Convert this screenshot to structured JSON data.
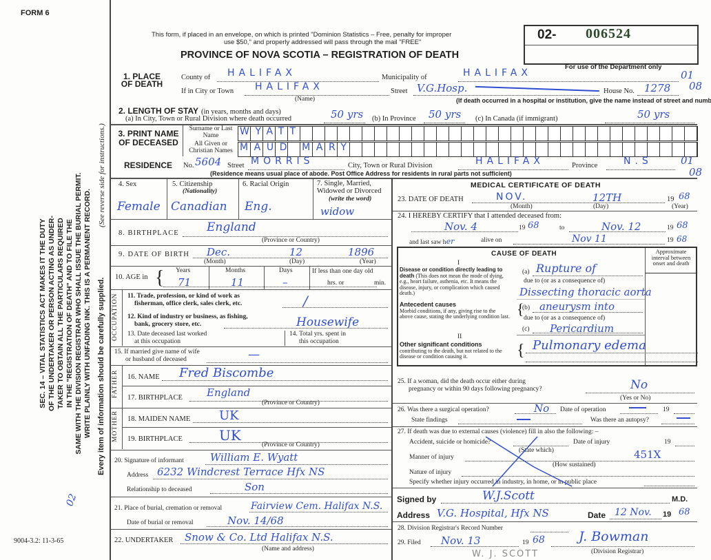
{
  "form_number": "FORM 6",
  "print_code": "9004-3.2: 11-3-65",
  "registration_number": {
    "prefix": "02-",
    "number": "006524"
  },
  "header": {
    "notice_line1": "This form, if placed in an envelope, on which is printed \"Dominion Statistics – Free, penalty for improper",
    "notice_line2": "use $50,\" and properly addressed will pass through the mail \"FREE\"",
    "title": "PROVINCE OF NOVA SCOTIA – REGISTRATION OF DEATH",
    "department_note": "For use of the Department only",
    "dept_codes": [
      "01",
      "08",
      "01",
      "08"
    ]
  },
  "sidebar": {
    "statute_lines": [
      "SEC. 14 – VITAL STATISTICS ACT MAKES IT THE DUTY",
      "OF THE UNDERTAKER OR PERSON ACTING AS UNDER-",
      "TAKER TO OBTAIN ALL THE PARTICULARS REQUIRED",
      "IN THE \"REGISTRATION OF DEATH\" AND TO FILE THE",
      "SAME WITH THE DIVISION REGISTRAR WHO SHALL ISSUE THE BURIAL PERMIT.",
      "WRITE PLAINLY WITH UNFADING INK. THIS IS A PERMANENT RECORD."
    ],
    "careful_note": "Every item of information should be carefully supplied.",
    "instructions_note": "(See reverse side for instructions.)",
    "margin_mark": "02"
  },
  "place_of_death": {
    "label": "1. PLACE OF DEATH",
    "county_label": "County of",
    "county": "HALIFAX",
    "municipality_label": "Municipality of",
    "municipality": "HALIFAX",
    "city_label": "If in City or Town",
    "city": "HALIFAX",
    "name_note": "(Name)",
    "street_label": "Street",
    "street": "V.G.Hosp.",
    "house_label": "House No.",
    "house_no": "1278",
    "hospital_note": "(If death occurred in a hospital or institution, give the name instead of street and number)"
  },
  "length_of_stay": {
    "label": "2. LENGTH OF STAY",
    "label_note": "(in years, months and days)",
    "a_label": "(a) In City, Town or Rural Division where death occurred",
    "a": "50 yrs",
    "b_label": "(b) In Province",
    "b": "50 yrs",
    "c_label": "(c) In Canada (if immigrant)",
    "c": "50 yrs"
  },
  "name": {
    "label": "3. PRINT NAME OF DECEASED",
    "surname_label": "Surname or Last Name",
    "surname": "WYATT",
    "given_label": "All Given or Christian Names",
    "given": "MAUD MARY"
  },
  "residence": {
    "label": "RESIDENCE",
    "no_label": "No.",
    "no": "5604",
    "street_label": "Street",
    "street": "MORRIS",
    "city_label": "City, Town or Rural Division",
    "city": "HALIFAX",
    "province_label": "Province",
    "province": "N.S",
    "note": "(Residence means usual place of abode. Post Office Address for residents in rural parts not sufficient)"
  },
  "personal": {
    "sex_label": "4. Sex",
    "sex": "Female",
    "citizenship_label": "5. Citizenship",
    "citizenship_note": "(Nationality)",
    "citizenship": "Canadian",
    "racial_label": "6. Racial Origin",
    "racial": "Eng.",
    "marital_label": "7. Single, Married, Widowed or Divorced",
    "marital_note": "(write the word)",
    "marital": "widow",
    "birthplace_label": "8. BIRTHPLACE",
    "birthplace": "England",
    "prov_country": "(Province or Country)",
    "dob_label": "9. DATE OF BIRTH",
    "dob_month": "Dec.",
    "dob_day": "12",
    "dob_year": "1896",
    "month_label": "(Month)",
    "day_label": "(Day)",
    "year_label": "(Year)",
    "age_label": "10. AGE in",
    "years_label": "Years",
    "years": "71",
    "months_label": "Months",
    "months": "11",
    "days_label": "Days",
    "days": "–",
    "less_day_label": "If less than one day old",
    "hrs_label": "hrs. or",
    "min_label": "min."
  },
  "occupation": {
    "section_label": "OCCUPATION",
    "trade_label1": "11. Trade, profession, or kind of work as",
    "trade_label2": "fisherman, office clerk, sales clerk, etc.",
    "trade": "/",
    "industry_label1": "12. Kind of industry or business, as fishing,",
    "industry_label2": "bank, grocery store, etc.",
    "industry": "Housewife",
    "last_worked_label1": "13. Date deceased last worked",
    "last_worked_label2": "at this occupation",
    "total_yrs_label1": "14. Total yrs. spent in",
    "total_yrs_label2": "this occupation"
  },
  "spouse": {
    "label1": "15. If married give name of wife",
    "label2": "or husband of deceased",
    "value": "—"
  },
  "father": {
    "section_label": "FATHER",
    "name_label": "16. NAME",
    "name": "Fred Biscombe",
    "birthplace_label": "17. BIRTHPLACE",
    "birthplace": "England"
  },
  "mother": {
    "section_label": "MOTHER",
    "maiden_label": "18. MAIDEN NAME",
    "maiden": "UK",
    "birthplace_label": "19. BIRTHPLACE",
    "birthplace": "UK"
  },
  "informant": {
    "signature_label": "20. Signature of informant",
    "signature": "William E. Wyatt",
    "address_label": "Address",
    "address": "6232 Windcrest Terrace Hfx NS",
    "relationship_label": "Relationship to deceased",
    "relationship": "Son"
  },
  "burial": {
    "place_label": "21. Place of burial, cremation or removal",
    "place": "Fairview Cem. Halifax N.S.",
    "date_label": "Date of burial or removal",
    "date": "Nov. 14/68"
  },
  "undertaker": {
    "label": "22. UNDERTAKER",
    "value": "Snow & Co. Ltd Halifax N.S.",
    "note": "(Name and address)"
  },
  "medical": {
    "title": "MEDICAL CERTIFICATE OF DEATH",
    "dod_label": "23. DATE OF DEATH",
    "dod_month": "NOV.",
    "dod_day": "12TH",
    "dod_year_prefix": "19",
    "dod_year": "68",
    "certify_label": "24. I HEREBY CERTIFY that I attended deceased from:",
    "from": "Nov. 4",
    "from_year": "68",
    "to_label": "to",
    "to": "Nov. 12",
    "to_year": "68",
    "last_saw_label": "and last saw h",
    "last_saw_pronoun": "er",
    "alive_on_label": "alive on",
    "last_saw": "Nov 11",
    "last_saw_year": "68",
    "cause": {
      "title": "CAUSE OF DEATH",
      "part1": "I",
      "part2": "II",
      "interval_label": "Approximate interval between onset and death",
      "direct_label": "Disease or condition directly leading to death",
      "direct_note": "(This does not mean the mode of dying, e.g., heart failure, asthenia, etc. It means the disease, injury, or complication which caused death.)",
      "antecedent_label": "Antecedent causes",
      "antecedent_note": "Morbid conditions, if any, giving rise to the above cause, stating the underlying condition last.",
      "a_label": "(a)",
      "a": "Rupture of",
      "due_to1": "due to (or as a consequence of)",
      "a2": "Dissecting thoracic aorta",
      "b_label": "(b)",
      "b": "aneurysm into",
      "due_to2": "due to (or as a consequence of)",
      "c_label": "(c)",
      "c": "Pericardium",
      "other_label": "Other significant conditions",
      "other_note": "contributing to the death, but not related to the disease or condition causing it.",
      "other": "Pulmonary edema"
    },
    "pregnancy_label1": "25. If a woman, did the death occur either during",
    "pregnancy_label2": "pregnancy or within 90 days following pregnancy?",
    "pregnancy": "No",
    "yes_no": "(Yes or No)",
    "operation_label": "26. Was there a surgical operation?",
    "operation": "No",
    "op_date_label": "Date of operation",
    "op_year": "19",
    "findings_label": "State findings",
    "autopsy_label": "Was there an autopsy?",
    "external_label": "27. If death was due to external causes (violence) fill in also the following: –",
    "accident_label": "Accident, suicide or homicide?",
    "state_which": "(State which)",
    "injury_date_label": "Date of injury",
    "injury_year": "19",
    "manner_label": "Manner of injury",
    "how_sustained": "(How sustained)",
    "code": "451X",
    "nature_label": "Nature of injury",
    "specify_label": "Specify whether injury occurred in industry, in home, or in public place",
    "signed_label": "Signed by",
    "signed": "W.J.Scott",
    "md": "M.D.",
    "address_label": "Address",
    "address": "V.G. Hospital, Hfx NS",
    "date_label": "Date",
    "date": "12 Nov.",
    "date_year_prefix": "19",
    "date_year": "68"
  },
  "registrar": {
    "record_label": "28. Division Registrar's Record Number",
    "filed_label": "29. Filed",
    "filed": "Nov. 13",
    "filed_year_prefix": "19",
    "filed_year": "68",
    "registrar_signature": "J. Bowman",
    "registrar_note": "(Division Registrar)",
    "stamp": "W. J. SCOTT"
  }
}
